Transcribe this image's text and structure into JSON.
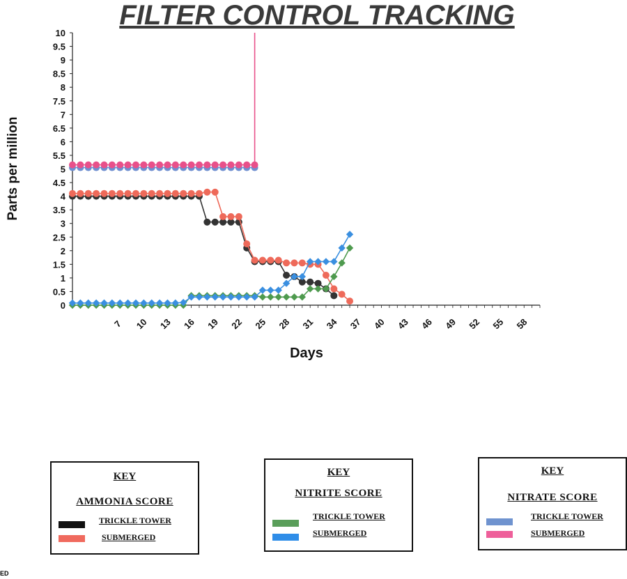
{
  "title": "FILTER CONTROL TRACKING",
  "chart_data": {
    "type": "line",
    "xlabel": "Days",
    "ylabel": "Parts per million",
    "xlim": [
      1,
      60
    ],
    "ylim": [
      0,
      10
    ],
    "x_tick_labels": [
      "7",
      "10",
      "13",
      "16",
      "19",
      "22",
      "25",
      "28",
      "31",
      "34",
      "37",
      "40",
      "43",
      "46",
      "49",
      "52",
      "55",
      "58"
    ],
    "y_tick_labels": [
      "0",
      "0.5",
      "1",
      "1.5",
      "2",
      "2.5",
      "3",
      "3.5",
      "4",
      "4.5",
      "5",
      "5.5",
      "6",
      "6.5",
      "7",
      "7.5",
      "8",
      "8.5",
      "9",
      "9.5",
      "10"
    ],
    "series": [
      {
        "group": "nitrate",
        "color": "#6f8fd0",
        "marker": "circle",
        "x": [
          1,
          2,
          3,
          4,
          5,
          6,
          7,
          8,
          9,
          10,
          11,
          12,
          13,
          14,
          15,
          16,
          17,
          18,
          19,
          20,
          21,
          22,
          23,
          24
        ],
        "y": [
          5.05,
          5.05,
          5.05,
          5.05,
          5.05,
          5.05,
          5.05,
          5.05,
          5.05,
          5.05,
          5.05,
          5.05,
          5.05,
          5.05,
          5.05,
          5.05,
          5.05,
          5.05,
          5.05,
          5.05,
          5.05,
          5.05,
          5.05,
          5.05
        ]
      },
      {
        "group": "nitrate",
        "color": "#e8508a",
        "marker": "circle",
        "x": [
          1,
          2,
          3,
          4,
          5,
          6,
          7,
          8,
          9,
          10,
          11,
          12,
          13,
          14,
          15,
          16,
          17,
          18,
          19,
          20,
          21,
          22,
          23,
          24,
          24
        ],
        "y": [
          5.15,
          5.15,
          5.15,
          5.15,
          5.15,
          5.15,
          5.15,
          5.15,
          5.15,
          5.15,
          5.15,
          5.15,
          5.15,
          5.15,
          5.15,
          5.15,
          5.15,
          5.15,
          5.15,
          5.15,
          5.15,
          5.15,
          5.15,
          5.15,
          10
        ]
      },
      {
        "group": "ammonia",
        "color": "#333333",
        "marker": "circle",
        "x": [
          1,
          2,
          3,
          4,
          5,
          6,
          7,
          8,
          9,
          10,
          11,
          12,
          13,
          14,
          15,
          16,
          17,
          18,
          19,
          20,
          21,
          22,
          23,
          24,
          25,
          26,
          27,
          28,
          29,
          30,
          31,
          32,
          33,
          34
        ],
        "y": [
          4,
          4,
          4,
          4,
          4,
          4,
          4,
          4,
          4,
          4,
          4,
          4,
          4,
          4,
          4,
          4,
          4,
          3.05,
          3.05,
          3.05,
          3.05,
          3.05,
          2.1,
          1.6,
          1.6,
          1.6,
          1.6,
          1.1,
          1.05,
          0.85,
          0.85,
          0.8,
          0.6,
          0.35
        ]
      },
      {
        "group": "ammonia",
        "color": "#ee6a5a",
        "marker": "circle",
        "x": [
          1,
          2,
          3,
          4,
          5,
          6,
          7,
          8,
          9,
          10,
          11,
          12,
          13,
          14,
          15,
          16,
          17,
          18,
          19,
          20,
          21,
          22,
          23,
          24,
          25,
          26,
          27,
          28,
          29,
          30,
          31,
          32,
          33,
          34,
          35,
          36
        ],
        "y": [
          4.1,
          4.1,
          4.1,
          4.1,
          4.1,
          4.1,
          4.1,
          4.1,
          4.1,
          4.1,
          4.1,
          4.1,
          4.1,
          4.1,
          4.1,
          4.1,
          4.1,
          4.15,
          4.15,
          3.25,
          3.25,
          3.25,
          2.25,
          1.65,
          1.65,
          1.65,
          1.65,
          1.55,
          1.55,
          1.55,
          1.5,
          1.5,
          1.1,
          0.6,
          0.4,
          0.15
        ]
      },
      {
        "group": "nitrite",
        "color": "#4e9a4e",
        "marker": "diamond",
        "x": [
          1,
          2,
          3,
          4,
          5,
          6,
          7,
          8,
          9,
          10,
          11,
          12,
          13,
          14,
          15,
          16,
          17,
          18,
          19,
          20,
          21,
          22,
          23,
          24,
          25,
          26,
          27,
          28,
          29,
          30,
          31,
          32,
          33,
          34,
          35,
          36
        ],
        "y": [
          0,
          0,
          0,
          0,
          0,
          0,
          0,
          0,
          0,
          0,
          0,
          0,
          0,
          0,
          0,
          0.35,
          0.35,
          0.35,
          0.35,
          0.35,
          0.35,
          0.35,
          0.35,
          0.35,
          0.3,
          0.3,
          0.3,
          0.3,
          0.3,
          0.3,
          0.6,
          0.6,
          0.6,
          1.05,
          1.55,
          2.1
        ]
      },
      {
        "group": "nitrite",
        "color": "#3a8fe0",
        "marker": "diamond",
        "x": [
          1,
          2,
          3,
          4,
          5,
          6,
          7,
          8,
          9,
          10,
          11,
          12,
          13,
          14,
          15,
          16,
          17,
          18,
          19,
          20,
          21,
          22,
          23,
          24,
          25,
          26,
          27,
          28,
          29,
          30,
          31,
          32,
          33,
          34,
          35,
          36
        ],
        "y": [
          0.08,
          0.08,
          0.08,
          0.08,
          0.08,
          0.08,
          0.08,
          0.08,
          0.08,
          0.08,
          0.08,
          0.08,
          0.08,
          0.08,
          0.1,
          0.3,
          0.3,
          0.3,
          0.3,
          0.3,
          0.3,
          0.3,
          0.3,
          0.3,
          0.55,
          0.55,
          0.55,
          0.8,
          1.05,
          1.05,
          1.6,
          1.6,
          1.6,
          1.6,
          2.1,
          2.6
        ]
      }
    ]
  },
  "keys": [
    {
      "heading": "KEY",
      "score": "AMMONIA  SCORE",
      "items": [
        {
          "label": "TRICKLE TOWER",
          "color": "#111111"
        },
        {
          "label": "SUBMERGED",
          "color": "#f06a5e"
        }
      ]
    },
    {
      "heading": "KEY",
      "score": "NITRITE  SCORE",
      "items": [
        {
          "label": "TRICKLE TOWER",
          "color": "#5a9e5a"
        },
        {
          "label": "SUBMERGED",
          "color": "#2f8de8"
        }
      ]
    },
    {
      "heading": "KEY",
      "score": "NITRATE  SCORE",
      "items": [
        {
          "label": "TRICKLE TOWER",
          "color": "#6f93cf"
        },
        {
          "label": "SUBMERGED",
          "color": "#ee5f9a"
        }
      ]
    }
  ],
  "corner_mark": "ED"
}
